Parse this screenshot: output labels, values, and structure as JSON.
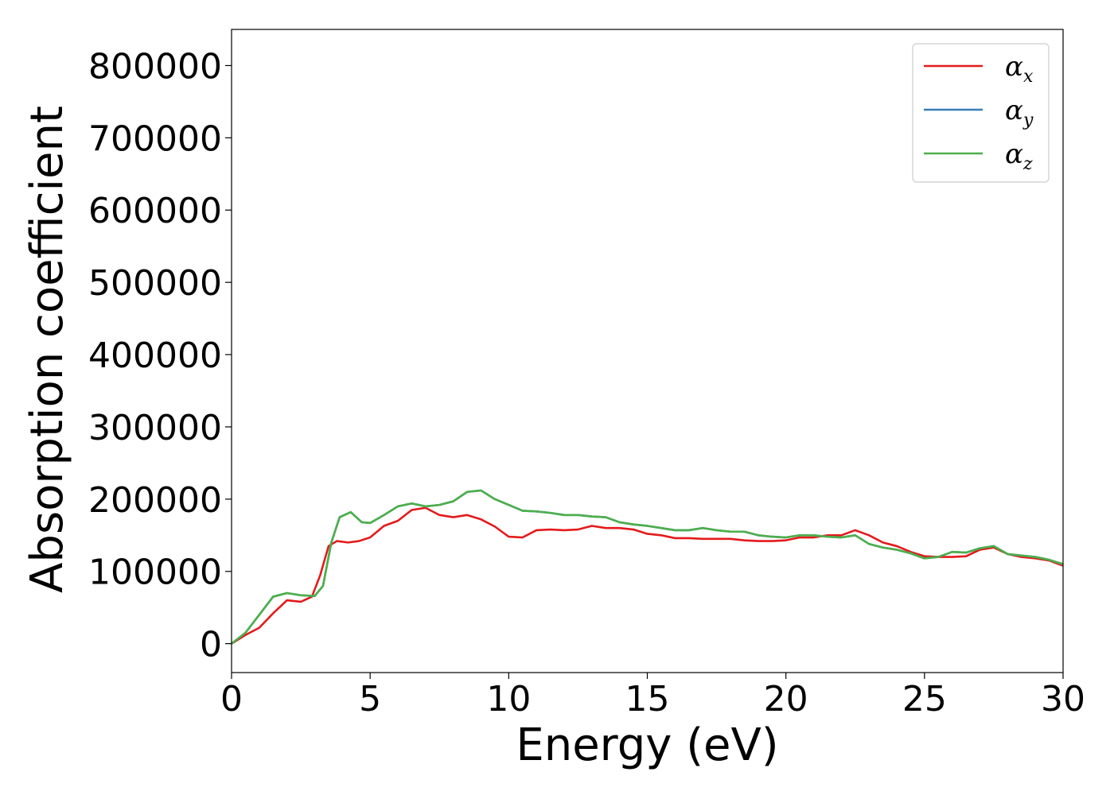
{
  "chart_data": {
    "type": "line",
    "title": "",
    "xlabel": "Energy (eV)",
    "ylabel": "Absorption coefficient",
    "xlim": [
      0,
      30
    ],
    "ylim": [
      -40000,
      850000
    ],
    "xticks": [
      0,
      5,
      10,
      15,
      20,
      25,
      30
    ],
    "xtick_labels": [
      "0",
      "5",
      "10",
      "15",
      "20",
      "25",
      "30"
    ],
    "yticks": [
      0,
      100000,
      200000,
      300000,
      400000,
      500000,
      600000,
      700000,
      800000
    ],
    "ytick_labels": [
      "0",
      "100000",
      "200000",
      "300000",
      "400000",
      "500000",
      "600000",
      "700000",
      "800000"
    ],
    "grid": false,
    "legend_position": "top-right",
    "series": [
      {
        "name": "αx",
        "legend_base": "α",
        "legend_sub": "x",
        "color": "#e41a1c",
        "x": [
          0,
          0.5,
          1,
          1.5,
          2,
          2.5,
          2.9,
          3.2,
          3.5,
          3.8,
          4.2,
          4.6,
          5,
          5.5,
          6,
          6.5,
          7,
          7.5,
          8,
          8.5,
          9,
          9.5,
          10,
          10.5,
          11,
          11.5,
          12,
          12.5,
          13,
          13.5,
          14,
          14.5,
          15,
          15.5,
          16,
          16.5,
          17,
          17.5,
          18,
          18.5,
          19,
          19.5,
          20,
          20.5,
          21,
          21.5,
          22,
          22.5,
          23,
          23.5,
          24,
          24.5,
          25,
          25.5,
          26,
          26.5,
          27,
          27.5,
          28,
          28.5,
          29,
          29.5,
          30
        ],
        "y": [
          0,
          12000,
          22000,
          42000,
          60000,
          58000,
          65000,
          95000,
          135000,
          142000,
          140000,
          142000,
          147000,
          163000,
          170000,
          185000,
          188000,
          178000,
          175000,
          178000,
          172000,
          162000,
          148000,
          147000,
          157000,
          158000,
          157000,
          158000,
          163000,
          160000,
          160000,
          158000,
          152000,
          150000,
          146000,
          146000,
          145000,
          145000,
          145000,
          143000,
          142000,
          142000,
          143000,
          147000,
          147000,
          150000,
          150000,
          157000,
          150000,
          140000,
          135000,
          127000,
          121000,
          120000,
          120000,
          121000,
          130000,
          133000,
          124000,
          120000,
          118000,
          115000,
          108000
        ]
      },
      {
        "name": "αy",
        "legend_base": "α",
        "legend_sub": "y",
        "color": "#377eb8",
        "x": [
          0,
          0.5,
          1,
          1.5,
          2,
          2.5,
          3,
          3.3,
          3.6,
          3.9,
          4.3,
          4.7,
          5,
          5.5,
          6,
          6.5,
          7,
          7.5,
          8,
          8.5,
          9,
          9.5,
          10,
          10.5,
          11,
          11.5,
          12,
          12.5,
          13,
          13.5,
          14,
          14.5,
          15,
          15.5,
          16,
          16.5,
          17,
          17.5,
          18,
          18.5,
          19,
          19.5,
          20,
          20.5,
          21,
          21.5,
          22,
          22.5,
          23,
          23.5,
          24,
          24.5,
          25,
          25.5,
          26,
          26.5,
          27,
          27.5,
          28,
          28.5,
          29,
          29.5,
          30
        ],
        "y": [
          0,
          15000,
          40000,
          65000,
          70000,
          67000,
          66000,
          80000,
          140000,
          175000,
          182000,
          168000,
          167000,
          178000,
          190000,
          194000,
          190000,
          192000,
          197000,
          210000,
          212000,
          200000,
          192000,
          184000,
          183000,
          181000,
          178000,
          178000,
          176000,
          175000,
          168000,
          165000,
          163000,
          160000,
          157000,
          157000,
          160000,
          157000,
          155000,
          155000,
          150000,
          148000,
          147000,
          150000,
          150000,
          148000,
          147000,
          150000,
          138000,
          133000,
          130000,
          125000,
          118000,
          120000,
          127000,
          126000,
          132000,
          135000,
          124000,
          122000,
          120000,
          116000,
          110000
        ]
      },
      {
        "name": "αz",
        "legend_base": "α",
        "legend_sub": "z",
        "color": "#4daf4a",
        "x": [
          0,
          0.5,
          1,
          1.5,
          2,
          2.5,
          3,
          3.3,
          3.6,
          3.9,
          4.3,
          4.7,
          5,
          5.5,
          6,
          6.5,
          7,
          7.5,
          8,
          8.5,
          9,
          9.5,
          10,
          10.5,
          11,
          11.5,
          12,
          12.5,
          13,
          13.5,
          14,
          14.5,
          15,
          15.5,
          16,
          16.5,
          17,
          17.5,
          18,
          18.5,
          19,
          19.5,
          20,
          20.5,
          21,
          21.5,
          22,
          22.5,
          23,
          23.5,
          24,
          24.5,
          25,
          25.5,
          26,
          26.5,
          27,
          27.5,
          28,
          28.5,
          29,
          29.5,
          30
        ],
        "y": [
          0,
          15000,
          40000,
          65000,
          70000,
          67000,
          66000,
          80000,
          140000,
          175000,
          182000,
          168000,
          167000,
          178000,
          190000,
          194000,
          190000,
          192000,
          197000,
          210000,
          212000,
          200000,
          192000,
          184000,
          183000,
          181000,
          178000,
          178000,
          176000,
          175000,
          168000,
          165000,
          163000,
          160000,
          157000,
          157000,
          160000,
          157000,
          155000,
          155000,
          150000,
          148000,
          147000,
          150000,
          150000,
          148000,
          147000,
          150000,
          138000,
          133000,
          130000,
          125000,
          118000,
          120000,
          127000,
          126000,
          132000,
          135000,
          124000,
          122000,
          120000,
          116000,
          110000
        ]
      }
    ]
  }
}
